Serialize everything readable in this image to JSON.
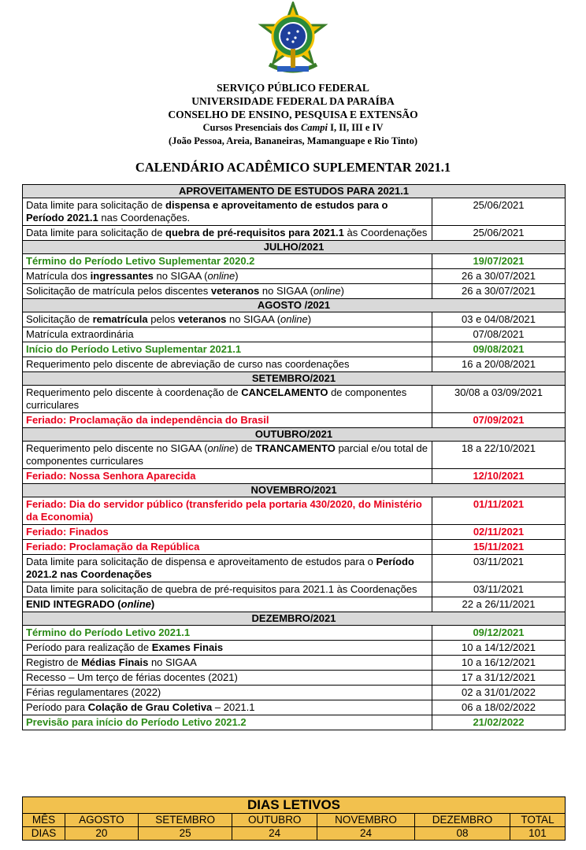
{
  "header": {
    "lines": [
      [
        {
          "text": "SERVIÇO PÚBLICO FEDERAL"
        }
      ],
      [
        {
          "text": "UNIVERSIDADE FEDERAL DA PARAÍBA"
        }
      ],
      [
        {
          "text": "CONSELHO DE ENSINO, PESQUISA E EXTENSÃO"
        }
      ],
      [
        {
          "text": "Cursos Presenciais dos "
        },
        {
          "text": "Campi",
          "italic": true
        },
        {
          "text": " I, II, III e IV"
        }
      ],
      [
        {
          "text": "(João Pessoa, Areia, Bananeiras, Mamanguape e Rio Tinto)"
        }
      ]
    ],
    "title": "CALENDÁRIO ACADÊMICO SUPLEMENTAR 2021.1"
  },
  "calendar": {
    "sections": [
      {
        "title": "APROVEITAMENTO DE ESTUDOS PARA 2021.1",
        "rows": [
          {
            "desc": [
              {
                "text": "Data limite para solicitação de "
              },
              {
                "text": "dispensa e aproveitamento de estudos para o Período 2021.1",
                "bold": true
              },
              {
                "text": " nas Coordenações."
              }
            ],
            "date": "25/06/2021"
          },
          {
            "desc": [
              {
                "text": "Data limite para solicitação de "
              },
              {
                "text": "quebra de pré-requisitos para 2021.1",
                "bold": true
              },
              {
                "text": " às Coordenações"
              }
            ],
            "date": "25/06/2021"
          }
        ]
      },
      {
        "title": "JULHO/2021",
        "rows": [
          {
            "desc": [
              {
                "text": "Término do Período Letivo Suplementar 2020.2"
              }
            ],
            "date": "19/07/2021",
            "color": "green"
          },
          {
            "desc": [
              {
                "text": "Matrícula dos "
              },
              {
                "text": "ingressantes",
                "bold": true
              },
              {
                "text": " no SIGAA ("
              },
              {
                "text": "online",
                "italic": true
              },
              {
                "text": ")"
              }
            ],
            "date": "26 a 30/07/2021"
          },
          {
            "desc": [
              {
                "text": "Solicitação de matrícula pelos discentes "
              },
              {
                "text": "veteranos",
                "bold": true
              },
              {
                "text": " no SIGAA ("
              },
              {
                "text": "online",
                "italic": true
              },
              {
                "text": ")"
              }
            ],
            "date": "26 a 30/07/2021"
          }
        ]
      },
      {
        "title": "AGOSTO /2021",
        "rows": [
          {
            "desc": [
              {
                "text": "Solicitação de "
              },
              {
                "text": "rematrícula",
                "bold": true
              },
              {
                "text": " pelos "
              },
              {
                "text": "veteranos",
                "bold": true
              },
              {
                "text": " no SIGAA ("
              },
              {
                "text": "online",
                "italic": true
              },
              {
                "text": ")"
              }
            ],
            "date": "03 e 04/08/2021"
          },
          {
            "desc": [
              {
                "text": "Matrícula extraordinária"
              }
            ],
            "date": "07/08/2021"
          },
          {
            "desc": [
              {
                "text": "Início do Período Letivo Suplementar 2021.1"
              }
            ],
            "date": "09/08/2021",
            "color": "green"
          },
          {
            "desc": [
              {
                "text": "Requerimento pelo discente de abreviação de curso nas coordenações"
              }
            ],
            "date": "16 a 20/08/2021"
          }
        ]
      },
      {
        "title": "SETEMBRO/2021",
        "rows": [
          {
            "desc": [
              {
                "text": "Requerimento pelo discente à coordenação de "
              },
              {
                "text": "CANCELAMENTO",
                "bold": true
              },
              {
                "text": " de componentes curriculares"
              }
            ],
            "date": "30/08 a 03/09/2021"
          },
          {
            "desc": [
              {
                "text": "Feriado: Proclamação da independência do Brasil"
              }
            ],
            "date": "07/09/2021",
            "color": "red"
          }
        ]
      },
      {
        "title": "OUTUBRO/2021",
        "rows": [
          {
            "desc": [
              {
                "text": "Requerimento pelo discente no SIGAA ("
              },
              {
                "text": "online",
                "italic": true
              },
              {
                "text": ") de "
              },
              {
                "text": "TRANCAMENTO",
                "bold": true
              },
              {
                "text": " parcial e/ou total de componentes curriculares"
              }
            ],
            "date": "18 a 22/10/2021"
          },
          {
            "desc": [
              {
                "text": "Feriado: Nossa Senhora Aparecida"
              }
            ],
            "date": "12/10/2021",
            "color": "red"
          }
        ]
      },
      {
        "title": "NOVEMBRO/2021",
        "rows": [
          {
            "desc": [
              {
                "text": "Feriado: Dia do servidor público (transferido pela portaria 430/2020, do Ministério da Economia)"
              }
            ],
            "date": "01/11/2021",
            "color": "red"
          },
          {
            "desc": [
              {
                "text": "Feriado: Finados"
              }
            ],
            "date": "02/11/2021",
            "color": "red"
          },
          {
            "desc": [
              {
                "text": "Feriado: Proclamação da República"
              }
            ],
            "date": "15/11/2021",
            "color": "red"
          },
          {
            "desc": [
              {
                "text": "Data limite para solicitação de dispensa e aproveitamento de estudos para o "
              },
              {
                "text": "Período 2021.2 nas Coordenações",
                "bold": true
              }
            ],
            "date": "03/11/2021"
          },
          {
            "desc": [
              {
                "text": "Data limite para solicitação de quebra de pré-requisitos para 2021.1 às Coordenações"
              }
            ],
            "date": "03/11/2021"
          },
          {
            "desc": [
              {
                "text": "ENID INTEGRADO (",
                "bold": true
              },
              {
                "text": "online",
                "bold": true,
                "italic": true
              },
              {
                "text": ")",
                "bold": true
              }
            ],
            "date": "22 a 26/11/2021"
          }
        ]
      },
      {
        "title": "DEZEMBRO/2021",
        "rows": [
          {
            "desc": [
              {
                "text": "Término do Período Letivo 2021.1"
              }
            ],
            "date": "09/12/2021",
            "color": "green"
          },
          {
            "desc": [
              {
                "text": "Período para realização de "
              },
              {
                "text": "Exames Finais",
                "bold": true
              }
            ],
            "date": "10 a 14/12/2021"
          },
          {
            "desc": [
              {
                "text": "Registro de "
              },
              {
                "text": "Médias Finais",
                "bold": true
              },
              {
                "text": " no SIGAA"
              }
            ],
            "date": "10 a 16/12/2021"
          },
          {
            "desc": [
              {
                "text": "Recesso – Um terço de férias docentes (2021)"
              }
            ],
            "date": "17 a 31/12/2021"
          },
          {
            "desc": [
              {
                "text": "Férias regulamentares (2022)"
              }
            ],
            "date": "02 a 31/01/2022"
          },
          {
            "desc": [
              {
                "text": "Período para "
              },
              {
                "text": "Colação de Grau Coletiva",
                "bold": true
              },
              {
                "text": " – 2021.1"
              }
            ],
            "date": "06 a 18/02/2022"
          },
          {
            "desc": [
              {
                "text": "Previsão para início do Período Letivo 2021.2"
              }
            ],
            "date": "21/02/2022",
            "color": "green"
          }
        ]
      }
    ]
  },
  "dias_letivos": {
    "title": "DIAS LETIVOS",
    "rows": [
      [
        "MÊS",
        "AGOSTO",
        "SETEMBRO",
        "OUTUBRO",
        "NOVEMBRO",
        "DEZEMBRO",
        "TOTAL"
      ],
      [
        "DIAS",
        "20",
        "25",
        "24",
        "24",
        "08",
        "101"
      ]
    ]
  }
}
